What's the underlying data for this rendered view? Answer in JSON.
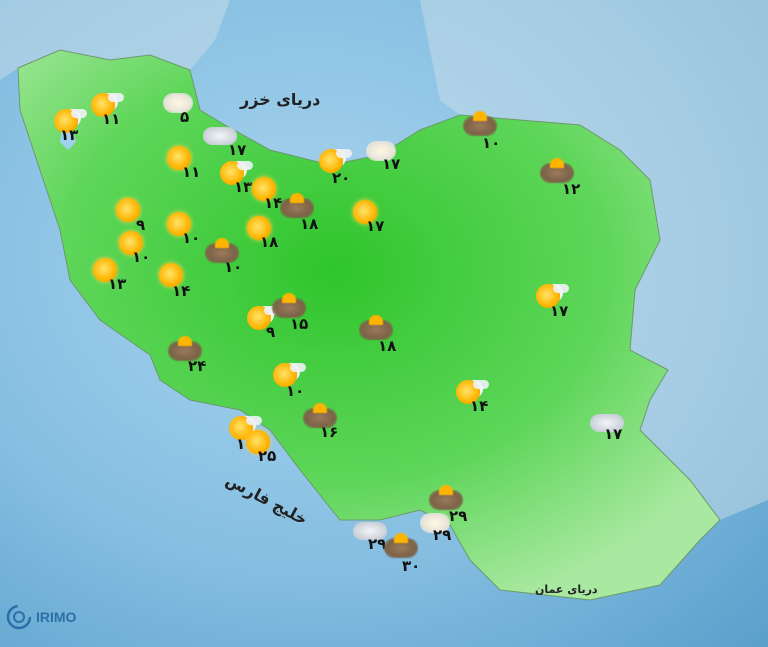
{
  "colors": {
    "sea": "#a9d4ee",
    "land": "#4fd24a",
    "text": "#111111",
    "logo": "#2b6fa8"
  },
  "labels": {
    "caspian": "دریای خزر",
    "persian_gulf": "خلیج فارس",
    "oman_sea": "دریای عمان"
  },
  "logo": {
    "text": "IRIMO"
  },
  "stations": [
    {
      "icon": "sun-cloud",
      "temp": "۱۳"
    },
    {
      "icon": "sun-cloud",
      "temp": "۱۱"
    },
    {
      "icon": "cloud-light",
      "temp": "۵"
    },
    {
      "icon": "cloud",
      "temp": "۱۷"
    },
    {
      "icon": "sun",
      "temp": "۱۱"
    },
    {
      "icon": "sun-cloud",
      "temp": "۱۳"
    },
    {
      "icon": "sun",
      "temp": "۱۴"
    },
    {
      "icon": "dust",
      "temp": "۱۸"
    },
    {
      "icon": "sun-cloud",
      "temp": "۲۰"
    },
    {
      "icon": "cloud-light",
      "temp": "۱۷"
    },
    {
      "icon": "dust",
      "temp": "۱۰"
    },
    {
      "icon": "dust",
      "temp": "۱۲"
    },
    {
      "icon": "sun",
      "temp": "۱۷"
    },
    {
      "icon": "sun",
      "temp": "۹"
    },
    {
      "icon": "sun",
      "temp": "۱۰"
    },
    {
      "icon": "sun",
      "temp": "۱۰"
    },
    {
      "icon": "dust",
      "temp": "۱۰"
    },
    {
      "icon": "sun",
      "temp": "۱۸"
    },
    {
      "icon": "sun",
      "temp": "۱۳"
    },
    {
      "icon": "sun",
      "temp": "۱۴"
    },
    {
      "icon": "sun-cloud",
      "temp": "۹"
    },
    {
      "icon": "dust",
      "temp": "۱۵"
    },
    {
      "icon": "dust",
      "temp": "۱۸"
    },
    {
      "icon": "dust",
      "temp": "۲۴"
    },
    {
      "icon": "sun-cloud",
      "temp": "۱۰"
    },
    {
      "icon": "dust",
      "temp": "۱۶"
    },
    {
      "icon": "sun-cloud",
      "temp": "۱"
    },
    {
      "icon": "sun",
      "temp": "۲۵"
    },
    {
      "icon": "sun-cloud",
      "temp": "۱۴"
    },
    {
      "icon": "sun-cloud",
      "temp": "۱۷"
    },
    {
      "icon": "cloud",
      "temp": "۱۷"
    },
    {
      "icon": "dust",
      "temp": "۲۹"
    },
    {
      "icon": "cloud-light",
      "temp": "۲۹"
    },
    {
      "icon": "cloud",
      "temp": "۲۹"
    },
    {
      "icon": "dust",
      "temp": "۳۰"
    }
  ]
}
